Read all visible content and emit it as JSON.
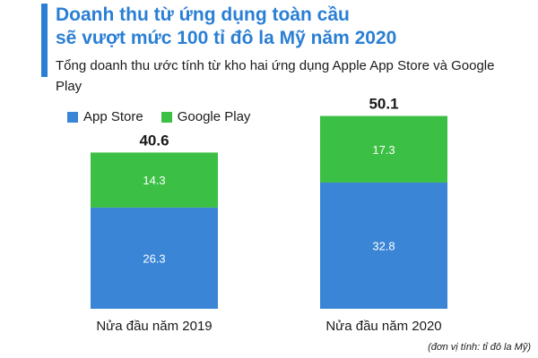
{
  "header": {
    "title_line1": "Doanh thu từ ứng dụng toàn cầu",
    "title_line2": "sẽ vượt mức 100 tỉ đô la Mỹ năm 2020",
    "subtitle": "Tổng doanh thu ước tính từ kho hai ứng dụng Apple App Store và Google Play"
  },
  "note": "(đơn vị tính: tỉ đô la Mỹ)",
  "colors": {
    "title": "#2a7fd4",
    "app_store": "#3a85d6",
    "google_play": "#3cbf45"
  },
  "chart_data": {
    "type": "bar",
    "stacked": true,
    "categories": [
      "Nửa đầu năm 2019",
      "Nửa đầu năm 2020"
    ],
    "series": [
      {
        "name": "App Store",
        "values": [
          26.3,
          32.8
        ]
      },
      {
        "name": "Google Play",
        "values": [
          14.3,
          17.3
        ]
      }
    ],
    "totals": [
      40.6,
      50.1
    ],
    "ylim": [
      0,
      55
    ],
    "legend_position": "top-left",
    "grid": false
  }
}
